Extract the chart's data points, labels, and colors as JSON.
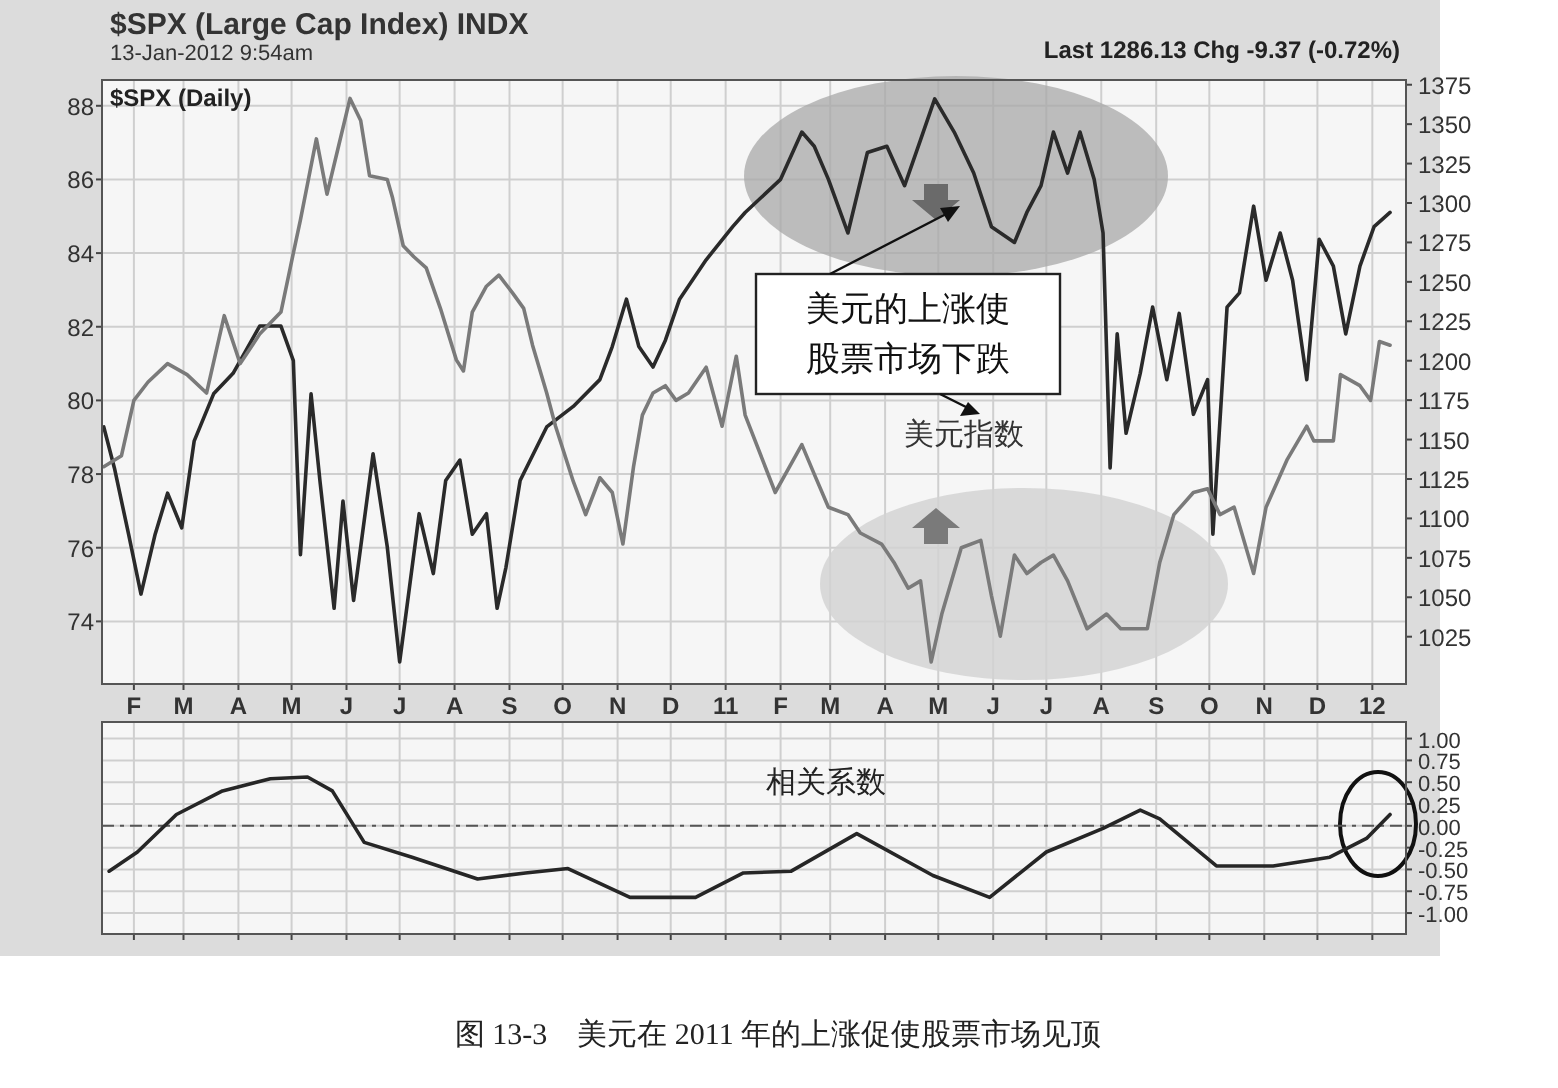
{
  "chart_data": [
    {
      "type": "line",
      "title": "$SPX (Large Cap Index) INDX",
      "subtitle": "13-Jan-2012 9:54am",
      "annotations": [
        "Last 1286.13  Chg -9.37 (-0.72%)",
        "$SPX (Daily)",
        "美元的上涨使股票市场下跌",
        "图 13-3　美元在 2011 年的上涨促使股票市场见顶"
      ],
      "xlim": [
        "2010-01-14",
        "2012-01-20"
      ],
      "xticks": [
        {
          "value": "2010-02-01",
          "label": "F"
        },
        {
          "value": "2010-03-01",
          "label": "M"
        },
        {
          "value": "2010-04-01",
          "label": "A"
        },
        {
          "value": "2010-05-01",
          "label": "M"
        },
        {
          "value": "2010-06-01",
          "label": "J"
        },
        {
          "value": "2010-07-01",
          "label": "J"
        },
        {
          "value": "2010-08-01",
          "label": "A"
        },
        {
          "value": "2010-09-01",
          "label": "S"
        },
        {
          "value": "2010-10-01",
          "label": "O"
        },
        {
          "value": "2010-11-01",
          "label": "N"
        },
        {
          "value": "2010-12-01",
          "label": "D"
        },
        {
          "value": "2011-01-01",
          "label": "11"
        },
        {
          "value": "2011-02-01",
          "label": "F"
        },
        {
          "value": "2011-03-01",
          "label": "M"
        },
        {
          "value": "2011-04-01",
          "label": "A"
        },
        {
          "value": "2011-05-01",
          "label": "M"
        },
        {
          "value": "2011-06-01",
          "label": "J"
        },
        {
          "value": "2011-07-01",
          "label": "J"
        },
        {
          "value": "2011-08-01",
          "label": "A"
        },
        {
          "value": "2011-09-01",
          "label": "S"
        },
        {
          "value": "2011-10-01",
          "label": "O"
        },
        {
          "value": "2011-11-01",
          "label": "N"
        },
        {
          "value": "2011-12-01",
          "label": "D"
        },
        {
          "value": "2012-01-01",
          "label": "12"
        }
      ],
      "ylim": [
        72.3,
        88.7
      ],
      "yticks": [
        74,
        76,
        78,
        80,
        82,
        84,
        86,
        88
      ],
      "y2lim": [
        995,
        1378
      ],
      "y2ticks": [
        1025,
        1050,
        1075,
        1100,
        1125,
        1150,
        1175,
        1200,
        1225,
        1250,
        1275,
        1300,
        1325,
        1350,
        1375
      ],
      "grid": true,
      "series": [
        {
          "color": "#2a2a2a",
          "axis": "y2",
          "x": [
            "2010-01-15",
            "2010-01-21",
            "2010-01-29",
            "2010-02-05",
            "2010-02-13",
            "2010-02-20",
            "2010-02-28",
            "2010-03-07",
            "2010-03-18",
            "2010-03-29",
            "2010-04-13",
            "2010-04-25",
            "2010-05-02",
            "2010-05-06",
            "2010-05-12",
            "2010-05-17",
            "2010-05-25",
            "2010-05-30",
            "2010-06-05",
            "2010-06-16",
            "2010-06-24",
            "2010-07-01",
            "2010-07-12",
            "2010-07-20",
            "2010-07-27",
            "2010-08-04",
            "2010-08-11",
            "2010-08-19",
            "2010-08-25",
            "2010-08-30",
            "2010-09-07",
            "2010-09-22",
            "2010-10-07",
            "2010-10-22",
            "2010-10-29",
            "2010-11-06",
            "2010-11-13",
            "2010-11-21",
            "2010-11-28",
            "2010-12-06",
            "2010-12-21",
            "2011-01-05",
            "2011-01-12",
            "2011-02-01",
            "2011-02-13",
            "2011-02-20",
            "2011-02-28",
            "2011-03-11",
            "2011-03-22",
            "2011-04-02",
            "2011-04-12",
            "2011-04-21",
            "2011-04-29",
            "2011-05-10",
            "2011-05-21",
            "2011-05-31",
            "2011-06-13",
            "2011-06-20",
            "2011-06-28",
            "2011-07-05",
            "2011-07-13",
            "2011-07-20",
            "2011-07-28",
            "2011-08-02",
            "2011-08-06",
            "2011-08-10",
            "2011-08-15",
            "2011-08-23",
            "2011-08-30",
            "2011-09-07",
            "2011-09-14",
            "2011-09-22",
            "2011-09-30",
            "2011-10-03",
            "2011-10-11",
            "2011-10-18",
            "2011-10-26",
            "2011-11-02",
            "2011-11-10",
            "2011-11-17",
            "2011-11-25",
            "2011-12-02",
            "2011-12-10",
            "2011-12-17",
            "2011-12-25",
            "2012-01-02",
            "2012-01-11"
          ],
          "values": [
            1158,
            1132,
            1090,
            1052,
            1090,
            1116,
            1094,
            1149,
            1179,
            1192,
            1222,
            1222,
            1200,
            1077,
            1179,
            1124,
            1043,
            1111,
            1048,
            1141,
            1082,
            1009,
            1103,
            1065,
            1124,
            1137,
            1090,
            1103,
            1043,
            1069,
            1124,
            1158,
            1171,
            1188,
            1209,
            1239,
            1209,
            1196,
            1213,
            1239,
            1264,
            1285,
            1294,
            1315,
            1345,
            1336,
            1315,
            1281,
            1332,
            1336,
            1311,
            1340,
            1366,
            1345,
            1319,
            1285,
            1275,
            1294,
            1311,
            1345,
            1319,
            1345,
            1315,
            1281,
            1132,
            1217,
            1154,
            1192,
            1234,
            1188,
            1230,
            1166,
            1188,
            1090,
            1234,
            1243,
            1298,
            1251,
            1281,
            1251,
            1188,
            1277,
            1260,
            1217,
            1260,
            1285,
            1294
          ]
        },
        {
          "name": "美元指数",
          "color": "#7a7a7a",
          "x": [
            "2010-01-15",
            "2010-01-25",
            "2010-02-01",
            "2010-02-09",
            "2010-02-20",
            "2010-03-03",
            "2010-03-14",
            "2010-03-24",
            "2010-04-02",
            "2010-04-13",
            "2010-04-25",
            "2010-05-02",
            "2010-05-06",
            "2010-05-15",
            "2010-05-21",
            "2010-05-27",
            "2010-06-03",
            "2010-06-09",
            "2010-06-14",
            "2010-06-24",
            "2010-06-27",
            "2010-07-03",
            "2010-07-09",
            "2010-07-16",
            "2010-07-24",
            "2010-08-02",
            "2010-08-06",
            "2010-08-11",
            "2010-08-19",
            "2010-08-26",
            "2010-09-03",
            "2010-09-09",
            "2010-09-14",
            "2010-09-22",
            "2010-09-27",
            "2010-10-07",
            "2010-10-14",
            "2010-10-22",
            "2010-10-29",
            "2010-11-04",
            "2010-11-10",
            "2010-11-15",
            "2010-11-21",
            "2010-11-28",
            "2010-12-04",
            "2010-12-11",
            "2010-12-21",
            "2010-12-30",
            "2011-01-07",
            "2011-01-12",
            "2011-01-29",
            "2011-02-13",
            "2011-02-20",
            "2011-02-28",
            "2011-03-11",
            "2011-03-18",
            "2011-03-30",
            "2011-04-06",
            "2011-04-14",
            "2011-04-21",
            "2011-04-27",
            "2011-05-03",
            "2011-05-14",
            "2011-05-25",
            "2011-05-31",
            "2011-06-05",
            "2011-06-13",
            "2011-06-20",
            "2011-06-28",
            "2011-07-05",
            "2011-07-13",
            "2011-07-24",
            "2011-08-04",
            "2011-08-12",
            "2011-08-27",
            "2011-09-03",
            "2011-09-11",
            "2011-09-22",
            "2011-09-30",
            "2011-10-07",
            "2011-10-15",
            "2011-10-26",
            "2011-11-02",
            "2011-11-14",
            "2011-11-25",
            "2011-11-29",
            "2011-12-10",
            "2011-12-14",
            "2011-12-25",
            "2011-12-31",
            "2012-01-05",
            "2012-01-11"
          ],
          "values": [
            78.2,
            78.5,
            80.0,
            80.5,
            81.0,
            80.7,
            80.2,
            82.3,
            81.0,
            81.8,
            82.4,
            84.0,
            84.9,
            87.1,
            85.6,
            86.8,
            88.2,
            87.6,
            86.1,
            86.0,
            85.5,
            84.2,
            83.9,
            83.6,
            82.5,
            81.1,
            80.8,
            82.4,
            83.1,
            83.4,
            82.9,
            82.5,
            81.5,
            80.2,
            79.3,
            77.8,
            76.9,
            77.9,
            77.5,
            76.1,
            78.2,
            79.6,
            80.2,
            80.4,
            80.0,
            80.2,
            80.9,
            79.3,
            81.2,
            79.6,
            77.5,
            78.8,
            78.0,
            77.1,
            76.9,
            76.4,
            76.1,
            75.6,
            74.9,
            75.1,
            72.9,
            74.2,
            76.0,
            76.2,
            74.7,
            73.6,
            75.8,
            75.3,
            75.6,
            75.8,
            75.1,
            73.8,
            74.2,
            73.8,
            73.8,
            75.6,
            76.9,
            77.5,
            77.6,
            76.9,
            77.1,
            75.3,
            77.1,
            78.4,
            79.3,
            78.9,
            78.9,
            80.7,
            80.4,
            80.0,
            81.6,
            81.5
          ]
        }
      ]
    },
    {
      "type": "line",
      "annotations": [
        "相关系数"
      ],
      "xlim": [
        "2010-01-14",
        "2012-01-20"
      ],
      "xticks": [
        {
          "value": "2010-02-01",
          "label": null
        },
        {
          "value": "2010-03-01",
          "label": null
        },
        {
          "value": "2010-04-01",
          "label": null
        },
        {
          "value": "2010-05-01",
          "label": null
        },
        {
          "value": "2010-06-01",
          "label": null
        },
        {
          "value": "2010-07-01",
          "label": null
        },
        {
          "value": "2010-08-01",
          "label": null
        },
        {
          "value": "2010-09-01",
          "label": null
        },
        {
          "value": "2010-10-01",
          "label": null
        },
        {
          "value": "2010-11-01",
          "label": null
        },
        {
          "value": "2010-12-01",
          "label": null
        },
        {
          "value": "2011-01-01",
          "label": null
        },
        {
          "value": "2011-02-01",
          "label": null
        },
        {
          "value": "2011-03-01",
          "label": null
        },
        {
          "value": "2011-04-01",
          "label": null
        },
        {
          "value": "2011-05-01",
          "label": null
        },
        {
          "value": "2011-06-01",
          "label": null
        },
        {
          "value": "2011-07-01",
          "label": null
        },
        {
          "value": "2011-08-01",
          "label": null
        },
        {
          "value": "2011-09-01",
          "label": null
        },
        {
          "value": "2011-10-01",
          "label": null
        },
        {
          "value": "2011-11-01",
          "label": null
        },
        {
          "value": "2011-12-01",
          "label": null
        },
        {
          "value": "2012-01-01",
          "label": null
        }
      ],
      "ylim": [
        -1.24,
        1.19
      ],
      "yticks": [
        {
          "value": -1,
          "label": "-1.00"
        },
        {
          "value": -0.75,
          "label": "-0.75"
        },
        {
          "value": -0.5,
          "label": "-0.50"
        },
        {
          "value": -0.25,
          "label": "-0.25"
        },
        {
          "value": 0,
          "label": "0.00"
        },
        {
          "value": 0.25,
          "label": "0.25"
        },
        {
          "value": 0.5,
          "label": "0.50"
        },
        {
          "value": 0.75,
          "label": "0.75"
        },
        {
          "value": 1,
          "label": "1.00"
        }
      ],
      "tick_labels": "y",
      "grid": true,
      "ref_lines": [
        {
          "axis": "y",
          "value": 0,
          "color": "#555555",
          "line_style": "dashed"
        }
      ],
      "series": [
        {
          "color": "#262626",
          "x": [
            "2010-01-18",
            "2010-02-03",
            "2010-02-25",
            "2010-03-23",
            "2010-04-19",
            "2010-05-10",
            "2010-05-24",
            "2010-06-11",
            "2010-07-08",
            "2010-08-14",
            "2010-09-10",
            "2010-10-04",
            "2010-11-08",
            "2010-12-15",
            "2011-01-11",
            "2011-02-07",
            "2011-03-16",
            "2011-04-28",
            "2011-05-30",
            "2011-07-01",
            "2011-08-02",
            "2011-08-23",
            "2011-09-03",
            "2011-10-05",
            "2011-11-06",
            "2011-12-08",
            "2011-12-29",
            "2012-01-11"
          ],
          "values": [
            -0.52,
            -0.3,
            0.13,
            0.4,
            0.54,
            0.56,
            0.4,
            -0.19,
            -0.36,
            -0.61,
            -0.54,
            -0.49,
            -0.82,
            -0.82,
            -0.54,
            -0.52,
            -0.09,
            -0.57,
            -0.82,
            -0.3,
            -0.03,
            0.18,
            0.08,
            -0.46,
            -0.46,
            -0.36,
            -0.14,
            0.13
          ]
        }
      ]
    }
  ]
}
